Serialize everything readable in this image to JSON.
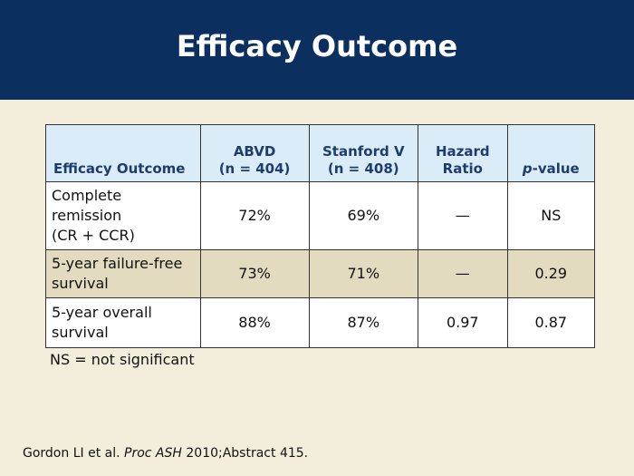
{
  "slide": {
    "title": "Efficacy Outcome"
  },
  "table": {
    "headers": [
      {
        "line1": "",
        "line2": "Efficacy Outcome"
      },
      {
        "line1": "ABVD",
        "line2": "(n = 404)"
      },
      {
        "line1": "Stanford V",
        "line2": "(n = 408)"
      },
      {
        "line1": "Hazard",
        "line2": "Ratio"
      },
      {
        "p": "p",
        "rest": "-value"
      }
    ],
    "rows": [
      {
        "label_lines": [
          "Complete",
          "remission",
          "(CR + CCR)"
        ],
        "abvd": "72%",
        "stanford": "69%",
        "hr": "—",
        "pvalue": "NS"
      },
      {
        "label_lines": [
          "5-year failure-free",
          "survival"
        ],
        "abvd": "73%",
        "stanford": "71%",
        "hr": "—",
        "pvalue": "0.29"
      },
      {
        "label_lines": [
          "5-year overall",
          "survival"
        ],
        "abvd": "88%",
        "stanford": "87%",
        "hr": "0.97",
        "pvalue": "0.87"
      }
    ]
  },
  "footnote": "NS = not significant",
  "citation": {
    "authors": "Gordon LI et al.",
    "journal": "Proc ASH",
    "rest": "2010;Abstract 415."
  },
  "colors": {
    "header_bg": "#0b2f5e",
    "slide_bg": "#f3eedc",
    "table_header_bg": "#d9ecf7",
    "table_header_text": "#1f3c6e",
    "shaded_row_bg": "#e3dbc0"
  }
}
